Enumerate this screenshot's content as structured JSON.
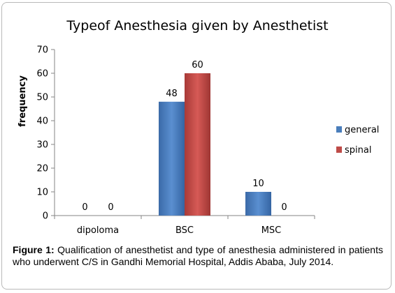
{
  "chart_data": {
    "type": "bar",
    "title": "Typeof Anesthesia given by Anesthetist",
    "ylabel": "frequency",
    "xlabel": "",
    "categories": [
      "dipoloma",
      "BSC",
      "MSC"
    ],
    "series": [
      {
        "name": "general",
        "color": "#4a7ebb",
        "values": [
          0,
          48,
          10
        ]
      },
      {
        "name": "spinal",
        "color": "#be4b48",
        "values": [
          0,
          60,
          0
        ]
      }
    ],
    "ylim": [
      0,
      70
    ],
    "yticks": [
      0,
      10,
      20,
      30,
      40,
      50,
      60,
      70
    ],
    "grid": false,
    "legend": "right"
  },
  "caption": {
    "label": "Figure 1:",
    "text": " Qualification of anesthetist and type of anesthesia administered in patients who underwent C/S in Gandhi Memorial Hospital, Addis Ababa, July 2014."
  }
}
